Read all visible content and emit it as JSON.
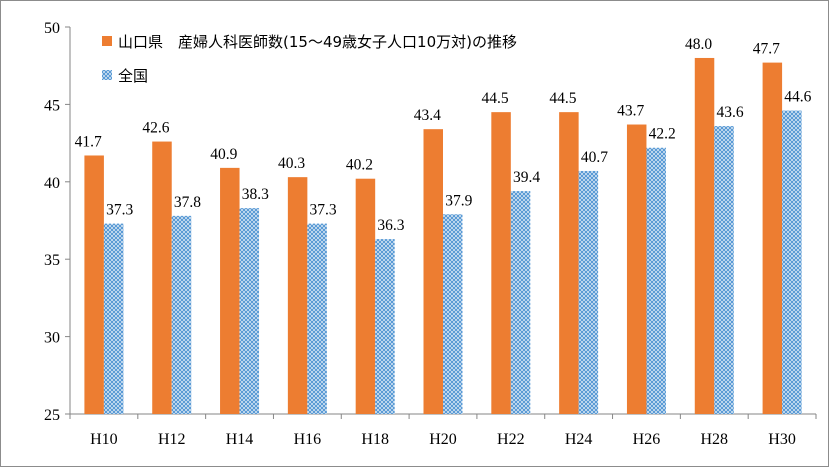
{
  "chart_data": {
    "type": "bar",
    "categories": [
      "H10",
      "H12",
      "H14",
      "H16",
      "H18",
      "H20",
      "H22",
      "H24",
      "H26",
      "H28",
      "H30"
    ],
    "series": [
      {
        "name": "山口県　産婦人科医師数(15～49歳女子人口10万対)の推移",
        "color": "#ED7D31",
        "pattern": "solid",
        "values": [
          41.7,
          42.6,
          40.9,
          40.3,
          40.2,
          43.4,
          44.5,
          44.5,
          43.7,
          48.0,
          47.7
        ],
        "labels": [
          "41.7",
          "42.6",
          "40.9",
          "40.3",
          "40.2",
          "43.4",
          "44.5",
          "44.5",
          "43.7",
          "48.0",
          "47.7"
        ]
      },
      {
        "name": "全国",
        "color": "#5B9BD5",
        "pattern": "dotted",
        "values": [
          37.3,
          37.8,
          38.3,
          37.3,
          36.3,
          37.9,
          39.4,
          40.7,
          42.2,
          43.6,
          44.6
        ],
        "labels": [
          "37.3",
          "37.8",
          "38.3",
          "37.3",
          "36.3",
          "37.9",
          "39.4",
          "40.7",
          "42.2",
          "43.6",
          "44.6"
        ]
      }
    ],
    "ylim": [
      25,
      50
    ],
    "yticks": [
      "25",
      "30",
      "35",
      "40",
      "45",
      "50"
    ],
    "grid": false,
    "legend_position": "top-left"
  }
}
